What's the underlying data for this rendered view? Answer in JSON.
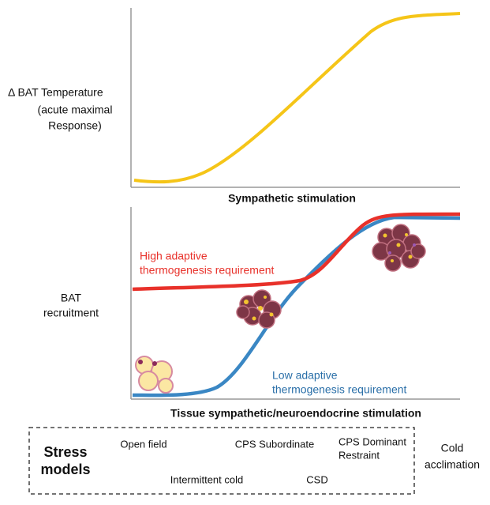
{
  "top_panel": {
    "y_label": [
      "Δ   BAT Temperature",
      "(acute maximal",
      "Response)"
    ],
    "x_label": "Sympathetic stimulation"
  },
  "bottom_panel": {
    "y_label": [
      "BAT",
      "recruitment"
    ],
    "x_label": "Tissue sympathetic/neuroendocrine stimulation",
    "curves": [
      {
        "label": [
          "High adaptive",
          "thermogenesis requirement"
        ]
      },
      {
        "label": [
          "Low adaptive",
          "thermogenesis requirement"
        ]
      }
    ]
  },
  "stress_box": {
    "title": [
      "Stress",
      "models"
    ],
    "items": [
      "Open field",
      "CPS Subordinate",
      "CPS Dominant",
      "Restraint",
      "Intermittent cold",
      "CSD"
    ]
  },
  "outside_label": [
    "Cold",
    "acclimation"
  ]
}
